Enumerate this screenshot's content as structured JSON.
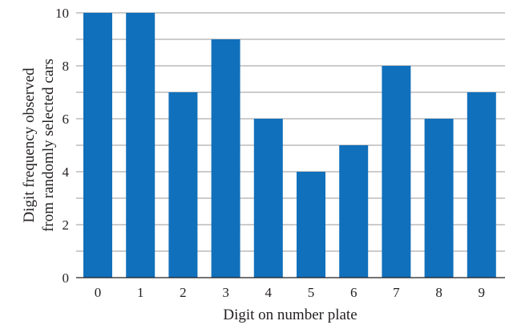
{
  "colors": {
    "bar": "#1170bb",
    "grid": "#9a9a9a",
    "axis": "#231f20",
    "background": "#ffffff"
  },
  "chart_data": {
    "type": "bar",
    "title": "",
    "xlabel": "Digit on number plate",
    "ylabel_lines": [
      "Digit frequency observed",
      "from randomly selected cars"
    ],
    "categories": [
      "0",
      "1",
      "2",
      "3",
      "4",
      "5",
      "6",
      "7",
      "8",
      "9"
    ],
    "values": [
      10,
      10,
      7,
      9,
      6,
      4,
      5,
      8,
      6,
      7
    ],
    "ylim": [
      0,
      10
    ],
    "yticks": [
      0,
      2,
      4,
      6,
      8,
      10
    ],
    "gridlines_at": [
      1,
      2,
      3,
      4,
      5,
      6,
      7,
      8,
      9,
      10
    ],
    "grid": true,
    "legend": "none"
  }
}
